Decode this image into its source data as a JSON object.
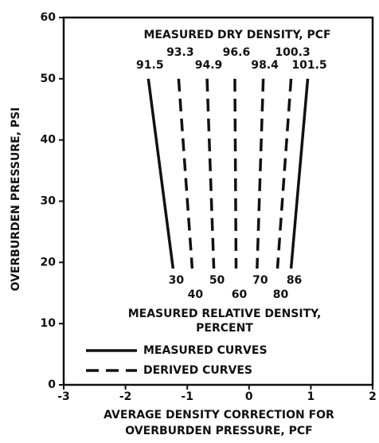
{
  "chart_data": {
    "type": "line",
    "title": "MEASURED DRY DENSITY, PCF",
    "bottom_title": [
      "MEASURED RELATIVE DENSITY,",
      "PERCENT"
    ],
    "xlabel": [
      "AVERAGE DENSITY CORRECTION FOR",
      "OVERBURDEN PRESSURE, PCF"
    ],
    "ylabel": "OVERBURDEN PRESSURE, PSI",
    "xlim": [
      -3,
      2
    ],
    "ylim": [
      0,
      60
    ],
    "xticks": [
      -3,
      -2,
      -1,
      0,
      1,
      2
    ],
    "yticks": [
      0,
      10,
      20,
      30,
      40,
      50,
      60
    ],
    "legend": [
      {
        "label": "MEASURED CURVES",
        "style": "solid"
      },
      {
        "label": "DERIVED CURVES",
        "style": "dashed"
      }
    ],
    "series": [
      {
        "name": 91.5,
        "relative_density": 30,
        "style": "solid",
        "x": [
          -1.63,
          -1.23
        ],
        "y": [
          50,
          19
        ]
      },
      {
        "name": 93.3,
        "relative_density": 40,
        "style": "dashed",
        "x": [
          -1.14,
          -0.92
        ],
        "y": [
          50,
          19
        ]
      },
      {
        "name": 94.9,
        "relative_density": 50,
        "style": "dashed",
        "x": [
          -0.68,
          -0.57
        ],
        "y": [
          50,
          19
        ]
      },
      {
        "name": 96.6,
        "relative_density": 60,
        "style": "dashed",
        "x": [
          -0.23,
          -0.21
        ],
        "y": [
          50,
          19
        ]
      },
      {
        "name": 98.4,
        "relative_density": 70,
        "style": "dashed",
        "x": [
          0.23,
          0.13
        ],
        "y": [
          50,
          19
        ]
      },
      {
        "name": 100.3,
        "relative_density": 80,
        "style": "dashed",
        "x": [
          0.68,
          0.46
        ],
        "y": [
          50,
          19
        ]
      },
      {
        "name": 101.5,
        "relative_density": 86,
        "style": "solid",
        "x": [
          0.95,
          0.68
        ],
        "y": [
          50,
          19
        ]
      }
    ]
  }
}
